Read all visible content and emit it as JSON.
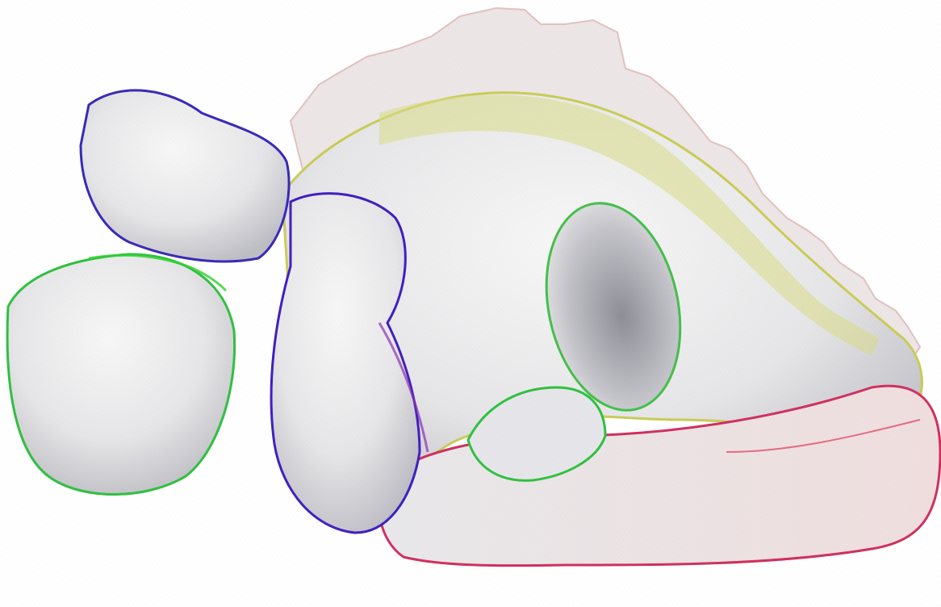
{
  "scene": {
    "background_color": "#ffffff",
    "surface_base_color": "#ececec",
    "surface_shadow_color": "#9a9aa2",
    "normal_colors": [
      "#e0202a",
      "#f0802a",
      "#c8c83a",
      "#30d030",
      "#2e8ad8",
      "#3a2aa8",
      "#a030a0",
      "#d02070"
    ],
    "dominant_colors": {
      "crest": "#e6d2d2",
      "back": "#c8d048",
      "tail": "#d83050",
      "legs_edge": "#30c040",
      "head_edge": "#4020c0"
    }
  }
}
